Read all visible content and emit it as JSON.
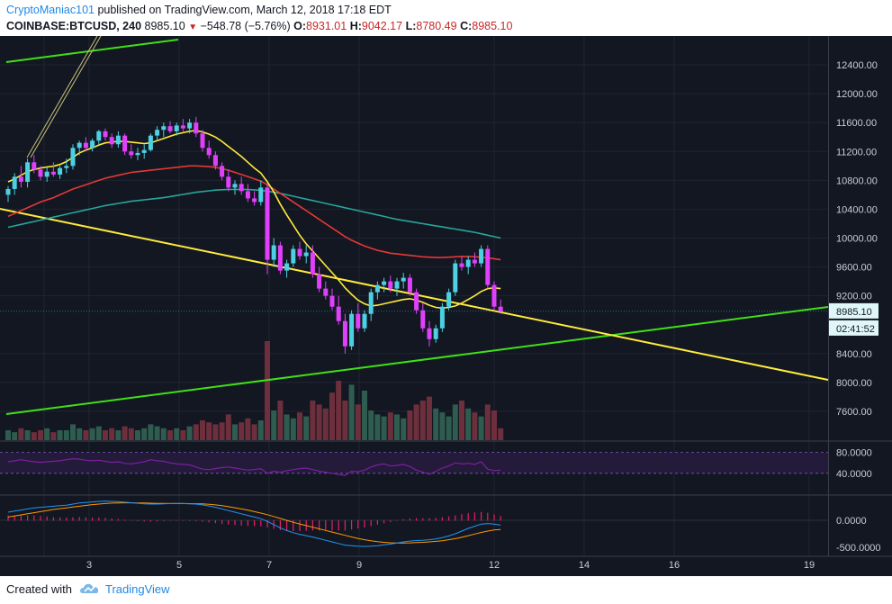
{
  "header": {
    "author": "CryptoManiac101",
    "published": "published on TradingView.com, March 12, 2018 17:18 EDT",
    "symbol": "COINBASE:BTCUSD, 240",
    "last": "8985.10",
    "down_symbol": "▼",
    "change": "−548.78 (−5.76%)",
    "o_label": "O:",
    "o": "8931.01",
    "h_label": "H:",
    "h": "9042.17",
    "l_label": "L:",
    "l": "8780.49",
    "c_label": "C:",
    "c": "8985.10"
  },
  "footer": {
    "created": "Created with",
    "brand": "TradingView"
  },
  "colors": {
    "bg": "#131722",
    "up": "#4dd0e1",
    "down": "#e040fb",
    "ema_fast": "#ffeb3b",
    "ema_mid": "#e53935",
    "ema_slow": "#26a69a",
    "trend_green": "#3fe016",
    "trend_yellow": "#ffeb3b",
    "vol_up": "#2e5d4f",
    "vol_down": "#6e2f3d",
    "rsi": "#7b1fa2",
    "macd": "#2196f3",
    "signal": "#ff9800",
    "hist": "#e91e63"
  },
  "chart_data": {
    "type": "candlestick",
    "interval": "240",
    "ylim": [
      7200,
      12800
    ],
    "y_ticks": [
      "12400.00",
      "12000.00",
      "11600.00",
      "11200.00",
      "10800.00",
      "10400.00",
      "10000.00",
      "9600.00",
      "9200.00",
      "8400.00",
      "8000.00",
      "7600.00"
    ],
    "x_ticks": [
      {
        "day": 2,
        "label": ""
      },
      {
        "day": 3,
        "label": "3"
      },
      {
        "day": 5,
        "label": "5"
      },
      {
        "day": 7,
        "label": "7"
      },
      {
        "day": 9,
        "label": "9"
      },
      {
        "day": 12,
        "label": "12"
      },
      {
        "day": 14,
        "label": "14"
      },
      {
        "day": 16,
        "label": "16"
      },
      {
        "day": 19,
        "label": "19"
      }
    ],
    "price_label": "8985.10",
    "countdown_label": "02:41:52",
    "candles": [
      [
        10600,
        10720,
        10500,
        10680
      ],
      [
        10680,
        10900,
        10600,
        10850
      ],
      [
        10850,
        11000,
        10700,
        10780
      ],
      [
        10780,
        11100,
        10700,
        11050
      ],
      [
        11050,
        11150,
        10900,
        10950
      ],
      [
        10950,
        11000,
        10800,
        10850
      ],
      [
        10850,
        10980,
        10780,
        10920
      ],
      [
        10920,
        11050,
        10850,
        10880
      ],
      [
        10880,
        11000,
        10820,
        10970
      ],
      [
        10970,
        11100,
        10900,
        11000
      ],
      [
        11000,
        11300,
        10950,
        11250
      ],
      [
        11250,
        11350,
        11150,
        11320
      ],
      [
        11320,
        11400,
        11200,
        11250
      ],
      [
        11250,
        11380,
        11200,
        11350
      ],
      [
        11350,
        11500,
        11300,
        11480
      ],
      [
        11480,
        11520,
        11350,
        11400
      ],
      [
        11400,
        11450,
        11250,
        11300
      ],
      [
        11300,
        11480,
        11250,
        11420
      ],
      [
        11420,
        11450,
        11150,
        11200
      ],
      [
        11200,
        11300,
        11100,
        11150
      ],
      [
        11150,
        11250,
        11080,
        11180
      ],
      [
        11180,
        11300,
        11100,
        11220
      ],
      [
        11220,
        11450,
        11200,
        11420
      ],
      [
        11420,
        11550,
        11350,
        11500
      ],
      [
        11500,
        11600,
        11400,
        11550
      ],
      [
        11550,
        11620,
        11450,
        11480
      ],
      [
        11480,
        11600,
        11420,
        11560
      ],
      [
        11560,
        11650,
        11480,
        11520
      ],
      [
        11520,
        11650,
        11450,
        11600
      ],
      [
        11600,
        11680,
        11400,
        11450
      ],
      [
        11450,
        11500,
        11200,
        11250
      ],
      [
        11250,
        11350,
        11100,
        11150
      ],
      [
        11150,
        11200,
        10950,
        11000
      ],
      [
        11000,
        11050,
        10800,
        10850
      ],
      [
        10850,
        10950,
        10650,
        10700
      ],
      [
        10700,
        10800,
        10600,
        10750
      ],
      [
        10750,
        10850,
        10600,
        10650
      ],
      [
        10650,
        10750,
        10500,
        10550
      ],
      [
        10550,
        10650,
        10450,
        10500
      ],
      [
        10500,
        10800,
        10450,
        10700
      ],
      [
        10700,
        10750,
        9500,
        9700
      ],
      [
        9700,
        10000,
        9600,
        9900
      ],
      [
        9900,
        9950,
        9500,
        9550
      ],
      [
        9550,
        9700,
        9450,
        9650
      ],
      [
        9650,
        9900,
        9600,
        9850
      ],
      [
        9850,
        9950,
        9700,
        9750
      ],
      [
        9750,
        9900,
        9650,
        9800
      ],
      [
        9800,
        9900,
        9450,
        9500
      ],
      [
        9500,
        9600,
        9250,
        9300
      ],
      [
        9300,
        9400,
        9150,
        9200
      ],
      [
        9200,
        9300,
        9000,
        9050
      ],
      [
        9050,
        9200,
        8800,
        8850
      ],
      [
        8850,
        8950,
        8400,
        8500
      ],
      [
        8500,
        9000,
        8450,
        8950
      ],
      [
        8950,
        9100,
        8700,
        8750
      ],
      [
        8750,
        9000,
        8700,
        8950
      ],
      [
        8950,
        9300,
        8850,
        9250
      ],
      [
        9250,
        9400,
        9150,
        9350
      ],
      [
        9350,
        9450,
        9250,
        9400
      ],
      [
        9400,
        9480,
        9250,
        9300
      ],
      [
        9300,
        9450,
        9200,
        9400
      ],
      [
        9400,
        9520,
        9300,
        9450
      ],
      [
        9450,
        9500,
        9200,
        9250
      ],
      [
        9250,
        9300,
        8950,
        9000
      ],
      [
        9000,
        9100,
        8700,
        8750
      ],
      [
        8750,
        8850,
        8500,
        8600
      ],
      [
        8600,
        8800,
        8550,
        8750
      ],
      [
        8750,
        9100,
        8700,
        9050
      ],
      [
        9050,
        9300,
        9000,
        9250
      ],
      [
        9250,
        9700,
        9200,
        9650
      ],
      [
        9650,
        9750,
        9550,
        9600
      ],
      [
        9600,
        9750,
        9500,
        9700
      ],
      [
        9700,
        9800,
        9600,
        9650
      ],
      [
        9650,
        9900,
        9600,
        9850
      ],
      [
        9850,
        9900,
        9300,
        9350
      ],
      [
        9350,
        9400,
        9000,
        9050
      ],
      [
        9050,
        9150,
        8950,
        8985
      ]
    ],
    "ema_fast": [
      10780,
      10820,
      10870,
      10920,
      10950,
      10970,
      10985,
      10995,
      11020,
      11060,
      11120,
      11180,
      11220,
      11250,
      11290,
      11320,
      11330,
      11340,
      11340,
      11330,
      11320,
      11310,
      11320,
      11350,
      11380,
      11410,
      11440,
      11460,
      11480,
      11490,
      11470,
      11440,
      11400,
      11340,
      11270,
      11200,
      11130,
      11050,
      10970,
      10900,
      10780,
      10640,
      10470,
      10320,
      10180,
      10040,
      9920,
      9820,
      9720,
      9620,
      9520,
      9420,
      9310,
      9220,
      9140,
      9090,
      9060,
      9070,
      9090,
      9110,
      9130,
      9150,
      9160,
      9140,
      9110,
      9070,
      9040,
      9030,
      9040,
      9060,
      9100,
      9150,
      9200,
      9260,
      9300,
      9310,
      9300
    ],
    "ema_mid": [
      10300,
      10340,
      10380,
      10420,
      10460,
      10500,
      10530,
      10560,
      10600,
      10640,
      10680,
      10710,
      10740,
      10770,
      10800,
      10830,
      10850,
      10870,
      10890,
      10910,
      10920,
      10930,
      10940,
      10950,
      10960,
      10970,
      10980,
      10990,
      11000,
      11000,
      10995,
      10990,
      10980,
      10960,
      10940,
      10910,
      10880,
      10850,
      10820,
      10790,
      10740,
      10680,
      10620,
      10560,
      10500,
      10440,
      10380,
      10320,
      10260,
      10200,
      10140,
      10080,
      10020,
      9970,
      9930,
      9890,
      9860,
      9830,
      9810,
      9790,
      9780,
      9770,
      9760,
      9750,
      9740,
      9735,
      9730,
      9730,
      9735,
      9740,
      9745,
      9745,
      9740,
      9735,
      9725,
      9715,
      9700
    ],
    "ema_slow": [
      10150,
      10170,
      10190,
      10210,
      10230,
      10250,
      10270,
      10290,
      10310,
      10330,
      10350,
      10370,
      10390,
      10410,
      10430,
      10450,
      10465,
      10480,
      10495,
      10510,
      10520,
      10530,
      10540,
      10550,
      10560,
      10575,
      10590,
      10605,
      10620,
      10635,
      10645,
      10655,
      10665,
      10670,
      10675,
      10675,
      10675,
      10672,
      10668,
      10662,
      10650,
      10635,
      10620,
      10600,
      10580,
      10560,
      10540,
      10520,
      10500,
      10480,
      10460,
      10440,
      10420,
      10400,
      10380,
      10360,
      10340,
      10320,
      10300,
      10280,
      10260,
      10245,
      10230,
      10215,
      10200,
      10185,
      10170,
      10155,
      10140,
      10125,
      10110,
      10095,
      10080,
      10060,
      10040,
      10020,
      10000
    ],
    "volume": [
      0.5,
      0.4,
      0.6,
      0.5,
      0.4,
      0.5,
      0.6,
      0.4,
      0.5,
      0.5,
      0.8,
      0.6,
      0.5,
      0.6,
      0.7,
      0.5,
      0.6,
      0.5,
      0.7,
      0.6,
      0.5,
      0.6,
      0.8,
      0.7,
      0.6,
      0.5,
      0.6,
      0.5,
      0.7,
      0.8,
      1.0,
      0.9,
      0.8,
      0.9,
      1.3,
      0.8,
      0.9,
      1.1,
      0.8,
      1.0,
      5.0,
      1.5,
      2.0,
      1.3,
      1.1,
      1.4,
      1.2,
      2.0,
      1.8,
      1.6,
      2.4,
      3.0,
      2.0,
      2.8,
      1.8,
      2.5,
      1.5,
      1.3,
      1.2,
      1.4,
      1.3,
      1.1,
      1.5,
      1.8,
      2.0,
      2.2,
      1.6,
      1.4,
      1.2,
      1.8,
      2.0,
      1.6,
      1.4,
      1.2,
      1.8,
      1.5,
      0.6
    ],
    "rsi": {
      "levels": [
        "80.0000",
        "40.0000"
      ],
      "values": [
        62,
        64,
        66,
        64,
        62,
        61,
        62,
        63,
        64,
        66,
        68,
        67,
        65,
        64,
        65,
        63,
        61,
        62,
        59,
        58,
        60,
        62,
        66,
        64,
        63,
        60,
        58,
        57,
        56,
        52,
        48,
        47,
        49,
        51,
        52,
        50,
        48,
        46,
        47,
        49,
        40,
        44,
        42,
        45,
        47,
        49,
        50,
        47,
        44,
        42,
        40,
        38,
        36,
        44,
        43,
        46,
        52,
        56,
        58,
        54,
        55,
        57,
        53,
        46,
        42,
        38,
        44,
        50,
        54,
        60,
        58,
        59,
        57,
        62,
        48,
        45,
        46
      ]
    },
    "macd": {
      "ticks": [
        "0.0000",
        "-500.0000"
      ],
      "macd": [
        150,
        170,
        190,
        210,
        230,
        240,
        250,
        260,
        270,
        280,
        300,
        320,
        330,
        340,
        350,
        355,
        350,
        345,
        335,
        325,
        315,
        305,
        300,
        300,
        305,
        310,
        312,
        310,
        305,
        300,
        285,
        265,
        240,
        210,
        180,
        150,
        120,
        90,
        60,
        30,
        -20,
        -80,
        -140,
        -190,
        -230,
        -260,
        -285,
        -310,
        -340,
        -370,
        -400,
        -430,
        -460,
        -470,
        -480,
        -485,
        -480,
        -470,
        -455,
        -440,
        -420,
        -400,
        -385,
        -375,
        -370,
        -360,
        -345,
        -320,
        -290,
        -250,
        -200,
        -150,
        -110,
        -70,
        -60,
        -70,
        -90
      ],
      "signal": [
        60,
        80,
        100,
        120,
        140,
        160,
        180,
        200,
        215,
        230,
        245,
        260,
        275,
        290,
        300,
        310,
        318,
        322,
        324,
        324,
        322,
        320,
        317,
        314,
        312,
        310,
        310,
        310,
        309,
        307,
        303,
        296,
        285,
        270,
        252,
        232,
        210,
        186,
        160,
        134,
        104,
        70,
        34,
        -2,
        -36,
        -68,
        -98,
        -128,
        -158,
        -188,
        -218,
        -248,
        -278,
        -308,
        -336,
        -360,
        -380,
        -396,
        -408,
        -416,
        -420,
        -420,
        -418,
        -414,
        -408,
        -400,
        -390,
        -378,
        -360,
        -340,
        -315,
        -285,
        -255,
        -225,
        -200,
        -180,
        -170
      ],
      "hist": [
        90,
        90,
        90,
        90,
        90,
        80,
        70,
        60,
        55,
        50,
        55,
        60,
        55,
        50,
        50,
        45,
        32,
        23,
        11,
        1,
        -7,
        -15,
        -17,
        -14,
        -7,
        0,
        2,
        0,
        -4,
        -7,
        -18,
        -31,
        -45,
        -60,
        -72,
        -82,
        -90,
        -96,
        -100,
        -104,
        -124,
        -150,
        -174,
        -188,
        -194,
        -192,
        -187,
        -182,
        -182,
        -182,
        -182,
        -182,
        -182,
        -162,
        -144,
        -125,
        -100,
        -74,
        -47,
        -24,
        0,
        20,
        33,
        39,
        38,
        40,
        45,
        58,
        70,
        90,
        115,
        135,
        145,
        155,
        140,
        110,
        80
      ]
    }
  }
}
